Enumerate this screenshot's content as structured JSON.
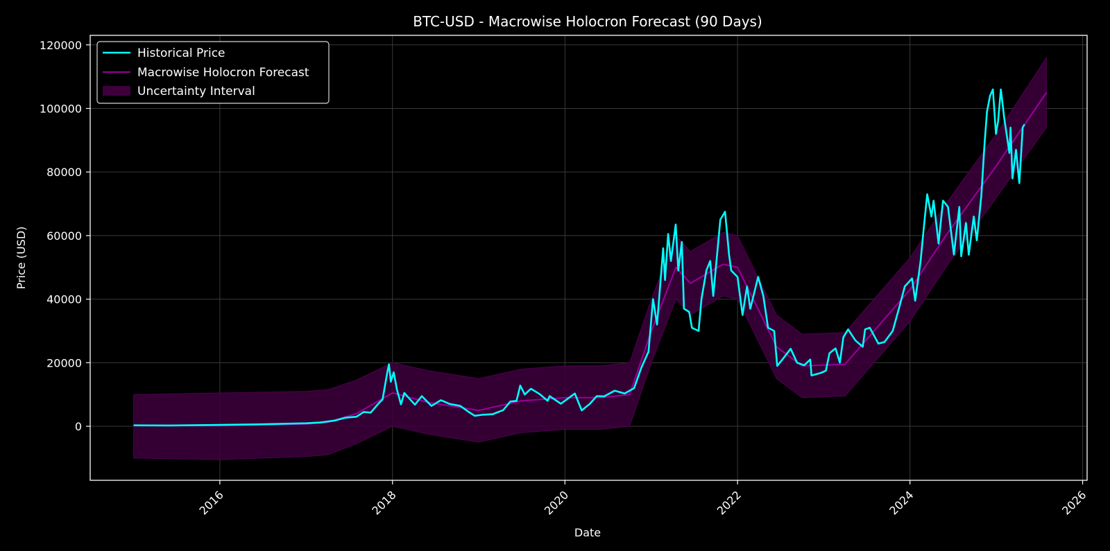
{
  "chart_data": {
    "type": "line",
    "title": "BTC-USD - Macrowise Holocron Forecast (90 Days)",
    "xlabel": "Date",
    "ylabel": "Price (USD)",
    "xlim": [
      "2014-07-01",
      "2026-01-20"
    ],
    "ylim": [
      -17000,
      123000
    ],
    "x_ticks": [
      "2016",
      "2018",
      "2020",
      "2022",
      "2024",
      "2026"
    ],
    "y_ticks": [
      0,
      20000,
      40000,
      60000,
      80000,
      100000,
      120000
    ],
    "y_tick_labels": [
      "0",
      "20000",
      "40000",
      "60000",
      "80000",
      "100000",
      "120000"
    ],
    "grid": true,
    "legend_position": "top-left",
    "legend": [
      {
        "label": "Historical Price",
        "kind": "line",
        "color": "#00ffff"
      },
      {
        "label": "Macrowise Holocron Forecast",
        "kind": "line",
        "color": "#9b009b"
      },
      {
        "label": "Uncertainty Interval",
        "kind": "area",
        "color": "#3d003d"
      }
    ],
    "series": [
      {
        "name": "Historical Price",
        "color": "#00ffff",
        "points": [
          [
            "2015-01-01",
            300
          ],
          [
            "2015-06-01",
            240
          ],
          [
            "2016-01-01",
            430
          ],
          [
            "2016-06-01",
            600
          ],
          [
            "2017-01-01",
            950
          ],
          [
            "2017-03-01",
            1200
          ],
          [
            "2017-05-01",
            1800
          ],
          [
            "2017-06-15",
            2700
          ],
          [
            "2017-08-01",
            3000
          ],
          [
            "2017-09-01",
            4500
          ],
          [
            "2017-10-01",
            4300
          ],
          [
            "2017-11-01",
            7000
          ],
          [
            "2017-11-20",
            8500
          ],
          [
            "2017-12-10",
            17000
          ],
          [
            "2017-12-17",
            19500
          ],
          [
            "2017-12-25",
            14000
          ],
          [
            "2018-01-06",
            17000
          ],
          [
            "2018-01-20",
            11500
          ],
          [
            "2018-02-06",
            6900
          ],
          [
            "2018-02-20",
            10500
          ],
          [
            "2018-03-10",
            9000
          ],
          [
            "2018-04-06",
            6800
          ],
          [
            "2018-05-05",
            9500
          ],
          [
            "2018-06-15",
            6400
          ],
          [
            "2018-07-25",
            8200
          ],
          [
            "2018-09-01",
            7000
          ],
          [
            "2018-10-15",
            6400
          ],
          [
            "2018-11-20",
            4500
          ],
          [
            "2018-12-15",
            3300
          ],
          [
            "2019-01-15",
            3600
          ],
          [
            "2019-03-01",
            3800
          ],
          [
            "2019-04-15",
            5100
          ],
          [
            "2019-05-15",
            7800
          ],
          [
            "2019-06-10",
            8000
          ],
          [
            "2019-06-26",
            12800
          ],
          [
            "2019-07-15",
            10000
          ],
          [
            "2019-08-10",
            11800
          ],
          [
            "2019-09-15",
            10200
          ],
          [
            "2019-10-20",
            8000
          ],
          [
            "2019-10-28",
            9500
          ],
          [
            "2019-12-15",
            7100
          ],
          [
            "2020-01-15",
            8800
          ],
          [
            "2020-02-12",
            10300
          ],
          [
            "2020-03-12",
            5000
          ],
          [
            "2020-04-15",
            7000
          ],
          [
            "2020-05-15",
            9500
          ],
          [
            "2020-06-15",
            9400
          ],
          [
            "2020-07-30",
            11200
          ],
          [
            "2020-09-10",
            10300
          ],
          [
            "2020-10-20",
            12000
          ],
          [
            "2020-11-20",
            18500
          ],
          [
            "2020-12-20",
            23500
          ],
          [
            "2021-01-08",
            40000
          ],
          [
            "2021-01-25",
            32000
          ],
          [
            "2021-02-20",
            56000
          ],
          [
            "2021-02-28",
            46000
          ],
          [
            "2021-03-13",
            60500
          ],
          [
            "2021-03-25",
            52000
          ],
          [
            "2021-04-14",
            63500
          ],
          [
            "2021-04-25",
            49000
          ],
          [
            "2021-05-10",
            58000
          ],
          [
            "2021-05-19",
            37000
          ],
          [
            "2021-06-10",
            36000
          ],
          [
            "2021-06-22",
            31000
          ],
          [
            "2021-07-20",
            30000
          ],
          [
            "2021-08-01",
            40000
          ],
          [
            "2021-08-22",
            49000
          ],
          [
            "2021-09-07",
            52000
          ],
          [
            "2021-09-20",
            41000
          ],
          [
            "2021-10-20",
            65000
          ],
          [
            "2021-11-09",
            67500
          ],
          [
            "2021-11-26",
            54000
          ],
          [
            "2021-12-05",
            49000
          ],
          [
            "2022-01-01",
            47000
          ],
          [
            "2022-01-22",
            35000
          ],
          [
            "2022-02-10",
            44000
          ],
          [
            "2022-02-24",
            37000
          ],
          [
            "2022-03-29",
            47000
          ],
          [
            "2022-04-20",
            41000
          ],
          [
            "2022-05-10",
            31000
          ],
          [
            "2022-06-05",
            30000
          ],
          [
            "2022-06-18",
            19000
          ],
          [
            "2022-07-10",
            21000
          ],
          [
            "2022-08-14",
            24400
          ],
          [
            "2022-09-10",
            20000
          ],
          [
            "2022-10-10",
            19200
          ],
          [
            "2022-11-05",
            21000
          ],
          [
            "2022-11-10",
            16000
          ],
          [
            "2022-12-20",
            16800
          ],
          [
            "2023-01-10",
            17500
          ],
          [
            "2023-01-25",
            23000
          ],
          [
            "2023-02-20",
            24500
          ],
          [
            "2023-03-10",
            20000
          ],
          [
            "2023-03-25",
            28000
          ],
          [
            "2023-04-14",
            30500
          ],
          [
            "2023-05-15",
            27000
          ],
          [
            "2023-06-15",
            25000
          ],
          [
            "2023-06-25",
            30500
          ],
          [
            "2023-07-15",
            31000
          ],
          [
            "2023-08-20",
            26000
          ],
          [
            "2023-09-15",
            26500
          ],
          [
            "2023-10-20",
            30000
          ],
          [
            "2023-11-15",
            37000
          ],
          [
            "2023-12-10",
            44000
          ],
          [
            "2024-01-10",
            46500
          ],
          [
            "2024-01-23",
            39500
          ],
          [
            "2024-02-15",
            52000
          ],
          [
            "2024-02-28",
            62000
          ],
          [
            "2024-03-14",
            73000
          ],
          [
            "2024-04-01",
            66000
          ],
          [
            "2024-04-10",
            71000
          ],
          [
            "2024-05-01",
            57500
          ],
          [
            "2024-05-20",
            71000
          ],
          [
            "2024-06-10",
            69000
          ],
          [
            "2024-07-05",
            54000
          ],
          [
            "2024-07-28",
            69000
          ],
          [
            "2024-08-05",
            53500
          ],
          [
            "2024-08-25",
            64000
          ],
          [
            "2024-09-06",
            54000
          ],
          [
            "2024-09-27",
            66000
          ],
          [
            "2024-10-10",
            58500
          ],
          [
            "2024-10-29",
            72500
          ],
          [
            "2024-11-12",
            89000
          ],
          [
            "2024-11-22",
            99000
          ],
          [
            "2024-12-05",
            104000
          ],
          [
            "2024-12-17",
            106000
          ],
          [
            "2024-12-30",
            92000
          ],
          [
            "2025-01-08",
            96000
          ],
          [
            "2025-01-20",
            106000
          ],
          [
            "2025-02-03",
            97000
          ],
          [
            "2025-02-25",
            86000
          ],
          [
            "2025-03-02",
            94000
          ],
          [
            "2025-03-10",
            78000
          ],
          [
            "2025-03-25",
            87000
          ],
          [
            "2025-04-08",
            76500
          ],
          [
            "2025-04-15",
            85000
          ],
          [
            "2025-04-22",
            94000
          ],
          [
            "2025-04-30",
            95000
          ]
        ]
      },
      {
        "name": "Macrowise Holocron Forecast",
        "color": "#9b009b",
        "points": [
          [
            "2015-01-01",
            300
          ],
          [
            "2016-01-01",
            200
          ],
          [
            "2017-01-01",
            700
          ],
          [
            "2017-04-01",
            1200
          ],
          [
            "2017-08-01",
            4000
          ],
          [
            "2018-01-01",
            10500
          ],
          [
            "2018-06-01",
            7500
          ],
          [
            "2019-01-01",
            5000
          ],
          [
            "2019-07-01",
            8000
          ],
          [
            "2020-01-01",
            9000
          ],
          [
            "2020-06-01",
            9000
          ],
          [
            "2020-10-01",
            10000
          ],
          [
            "2021-01-01",
            30000
          ],
          [
            "2021-04-15",
            50000
          ],
          [
            "2021-06-15",
            45000
          ],
          [
            "2021-11-01",
            51000
          ],
          [
            "2022-01-01",
            50000
          ],
          [
            "2022-03-15",
            39000
          ],
          [
            "2022-06-15",
            25000
          ],
          [
            "2022-10-01",
            19000
          ],
          [
            "2023-04-01",
            19500
          ],
          [
            "2024-01-01",
            43000
          ],
          [
            "2024-06-01",
            60000
          ],
          [
            "2025-01-01",
            82000
          ],
          [
            "2025-08-01",
            105000
          ]
        ]
      }
    ],
    "band": {
      "name": "Uncertainty Interval",
      "color": "#3d003d",
      "points": [
        [
          "2015-01-01",
          -10000,
          10000
        ],
        [
          "2016-01-01",
          -10500,
          10500
        ],
        [
          "2017-01-01",
          -9500,
          11000
        ],
        [
          "2017-04-01",
          -9000,
          11500
        ],
        [
          "2017-08-01",
          -5500,
          14500
        ],
        [
          "2018-01-01",
          0,
          20000
        ],
        [
          "2018-06-01",
          -2500,
          17500
        ],
        [
          "2019-01-01",
          -5000,
          15000
        ],
        [
          "2019-07-01",
          -2000,
          18000
        ],
        [
          "2020-01-01",
          -1000,
          19000
        ],
        [
          "2020-06-01",
          -1000,
          19000
        ],
        [
          "2020-10-01",
          0,
          20000
        ],
        [
          "2021-01-01",
          20000,
          40000
        ],
        [
          "2021-04-15",
          40000,
          60000
        ],
        [
          "2021-06-15",
          35000,
          55000
        ],
        [
          "2021-11-01",
          41000,
          61000
        ],
        [
          "2022-01-01",
          40000,
          60000
        ],
        [
          "2022-03-15",
          29000,
          49000
        ],
        [
          "2022-06-15",
          15000,
          35000
        ],
        [
          "2022-10-01",
          9000,
          29000
        ],
        [
          "2023-04-01",
          9500,
          29500
        ],
        [
          "2024-01-01",
          33000,
          53000
        ],
        [
          "2024-06-01",
          50000,
          70000
        ],
        [
          "2025-01-01",
          72000,
          92000
        ],
        [
          "2025-08-01",
          94000,
          116000
        ]
      ]
    }
  }
}
